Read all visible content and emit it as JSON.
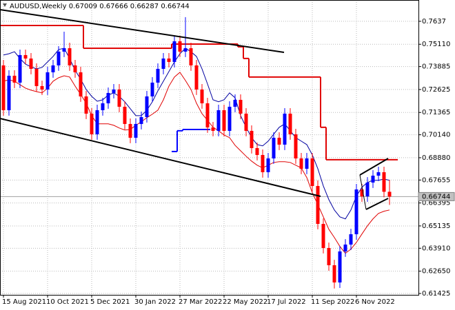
{
  "chart_data": {
    "type": "candlestick",
    "title": "AUDUSD,Weekly",
    "categories": [
      "15 Aug 2021",
      null,
      null,
      null,
      null,
      null,
      null,
      null,
      "10 Oct 2021",
      null,
      null,
      null,
      null,
      null,
      null,
      null,
      "5 Dec 2021",
      null,
      null,
      null,
      null,
      null,
      null,
      null,
      "30 Jan 2022",
      null,
      null,
      null,
      null,
      null,
      null,
      null,
      "27 Mar 2022",
      null,
      null,
      null,
      null,
      null,
      null,
      null,
      "22 May 2022",
      null,
      null,
      null,
      null,
      null,
      null,
      null,
      "17 Jul 2022",
      null,
      null,
      null,
      null,
      null,
      null,
      null,
      "11 Sep 2022",
      null,
      null,
      null,
      null,
      null,
      null,
      null,
      "6 Nov 2022",
      null,
      null,
      null,
      null,
      null,
      null
    ],
    "open": [
      0.73949,
      0.71489,
      0.73381,
      0.73003,
      0.74516,
      0.74327,
      0.73759,
      0.72813,
      0.72624,
      0.7357,
      0.73949,
      0.74705,
      0.74894,
      0.73949,
      0.7357,
      0.72246,
      0.713,
      0.70165,
      0.71489,
      0.71868,
      0.72435,
      0.72624,
      0.71678,
      0.70733,
      0.69976,
      0.70733,
      0.71111,
      0.72246,
      0.73003,
      0.73759,
      0.74327,
      0.74138,
      0.75273,
      0.74705,
      0.74894,
      0.73949,
      0.72624,
      0.71868,
      0.70543,
      0.70354,
      0.71489,
      0.70354,
      0.71678,
      0.72057,
      0.713,
      0.70354,
      0.69408,
      0.6903,
      0.68084,
      0.68841,
      0.69976,
      0.69598,
      0.713,
      0.70165,
      0.68841,
      0.68273,
      0.68841,
      0.67327,
      0.65246,
      0.63922,
      0.62976,
      0.6203,
      0.63733,
      0.64111,
      0.64678,
      0.67138,
      0.66759,
      0.67516,
      0.67895,
      0.68084,
      0.67009
    ],
    "high": [
      0.74249,
      0.73681,
      0.73681,
      0.74816,
      0.74816,
      0.74627,
      0.74059,
      0.73113,
      0.7387,
      0.74249,
      0.75005,
      0.758,
      0.75194,
      0.74249,
      0.7387,
      0.72546,
      0.716,
      0.71789,
      0.72168,
      0.72735,
      0.72924,
      0.72924,
      0.71978,
      0.71033,
      0.71033,
      0.71411,
      0.72546,
      0.73303,
      0.74059,
      0.74627,
      0.74627,
      0.75573,
      0.75573,
      0.766,
      0.75194,
      0.74249,
      0.72924,
      0.72168,
      0.70843,
      0.71789,
      0.71789,
      0.71978,
      0.72357,
      0.72357,
      0.716,
      0.70654,
      0.69708,
      0.6933,
      0.69141,
      0.70276,
      0.70276,
      0.716,
      0.716,
      0.70465,
      0.69141,
      0.69141,
      0.69141,
      0.67627,
      0.65546,
      0.64222,
      0.63276,
      0.64033,
      0.64411,
      0.64978,
      0.67438,
      0.67438,
      0.67816,
      0.68195,
      0.68384,
      0.68384,
      0.67666
    ],
    "low": [
      0.71189,
      0.71189,
      0.72703,
      0.72703,
      0.74027,
      0.73459,
      0.72513,
      0.72324,
      0.72324,
      0.7327,
      0.73649,
      0.74405,
      0.73649,
      0.7327,
      0.71946,
      0.71,
      0.69865,
      0.69865,
      0.71189,
      0.71568,
      0.72135,
      0.71378,
      0.70433,
      0.69676,
      0.69676,
      0.70433,
      0.70811,
      0.71946,
      0.72703,
      0.73459,
      0.73838,
      0.73838,
      0.74405,
      0.74405,
      0.73649,
      0.72324,
      0.71568,
      0.70243,
      0.70054,
      0.70054,
      0.70054,
      0.70054,
      0.71378,
      0.71,
      0.70054,
      0.69108,
      0.6873,
      0.67784,
      0.67784,
      0.68541,
      0.69298,
      0.69298,
      0.69865,
      0.68541,
      0.67973,
      0.67973,
      0.67027,
      0.64946,
      0.63622,
      0.62676,
      0.617,
      0.6173,
      0.63433,
      0.63811,
      0.64378,
      0.66459,
      0.66459,
      0.67216,
      0.67595,
      0.66709,
      0.66287
    ],
    "close": [
      0.71489,
      0.73381,
      0.73003,
      0.74516,
      0.74327,
      0.73759,
      0.72813,
      0.72624,
      0.7357,
      0.73949,
      0.74705,
      0.74894,
      0.73949,
      0.7357,
      0.72246,
      0.713,
      0.70165,
      0.71489,
      0.71868,
      0.72435,
      0.72624,
      0.71678,
      0.70733,
      0.69976,
      0.70733,
      0.71111,
      0.72246,
      0.73003,
      0.73759,
      0.74327,
      0.74138,
      0.75273,
      0.74705,
      0.74894,
      0.73949,
      0.72624,
      0.71868,
      0.70543,
      0.70354,
      0.71489,
      0.70354,
      0.71678,
      0.72057,
      0.713,
      0.70354,
      0.69408,
      0.6903,
      0.68084,
      0.68841,
      0.69976,
      0.69598,
      0.713,
      0.70165,
      0.68841,
      0.68273,
      0.68841,
      0.67327,
      0.65246,
      0.63922,
      0.62976,
      0.6203,
      0.63733,
      0.64111,
      0.64678,
      0.67138,
      0.66759,
      0.67516,
      0.67895,
      0.68084,
      0.67009,
      0.66744
    ],
    "up_color": "#0000ff",
    "down_color": "#ff0000",
    "overlays": [
      {
        "style": "line",
        "color": "#0000a0",
        "values": [
          0.7452,
          0.7459,
          0.747,
          0.7433,
          0.7402,
          0.7387,
          0.7376,
          0.7384,
          0.7414,
          0.7444,
          0.7482,
          0.7489,
          0.7433,
          0.7368,
          0.7319,
          0.7263,
          0.7225,
          0.7198,
          0.7206,
          0.7232,
          0.7244,
          0.7225,
          0.7195,
          0.7157,
          0.7119,
          0.7119,
          0.7149,
          0.7195,
          0.7255,
          0.7308,
          0.7361,
          0.7414,
          0.7459,
          0.7489,
          0.747,
          0.7444,
          0.7376,
          0.7293,
          0.7206,
          0.7195,
          0.7206,
          0.7244,
          0.7217,
          0.7119,
          0.7055,
          0.6998,
          0.696,
          0.6953,
          0.6979,
          0.7017,
          0.7055,
          0.7074,
          0.7036,
          0.6998,
          0.6979,
          0.696,
          0.6904,
          0.6828,
          0.6733,
          0.6658,
          0.6601,
          0.6563,
          0.6552,
          0.6601,
          0.6677,
          0.6726,
          0.6752,
          0.6764,
          0.6764,
          0.6771,
          0.6764
        ]
      },
      {
        "style": "line",
        "color": "#e00000",
        "values": [
          0.7308,
          0.7316,
          0.7308,
          0.7289,
          0.727,
          0.7259,
          0.7251,
          0.7244,
          0.727,
          0.7308,
          0.7327,
          0.7338,
          0.7331,
          0.7281,
          0.7236,
          0.7187,
          0.7119,
          0.7074,
          0.7074,
          0.7074,
          0.7066,
          0.7051,
          0.704,
          0.7043,
          0.7066,
          0.7085,
          0.7108,
          0.7127,
          0.7149,
          0.7206,
          0.7281,
          0.7331,
          0.7357,
          0.7312,
          0.7263,
          0.7187,
          0.713,
          0.7093,
          0.7055,
          0.7036,
          0.7013,
          0.6998,
          0.6956,
          0.6926,
          0.6896,
          0.6869,
          0.6847,
          0.6832,
          0.6847,
          0.6862,
          0.6866,
          0.6866,
          0.6862,
          0.6847,
          0.6832,
          0.6779,
          0.6696,
          0.6631,
          0.6563,
          0.6495,
          0.645,
          0.6401,
          0.6363,
          0.6386,
          0.6423,
          0.6469,
          0.6514,
          0.6552,
          0.6582,
          0.6594,
          0.6601
        ]
      },
      {
        "style": "step",
        "color": "#e00000",
        "values": [
          0.7614,
          0.7614,
          0.7614,
          0.7614,
          0.7614,
          0.7614,
          0.7614,
          0.7614,
          0.7614,
          0.7614,
          0.7614,
          0.7614,
          0.7614,
          0.7614,
          0.7614,
          0.7489,
          0.7489,
          0.7489,
          0.7489,
          0.7489,
          0.7489,
          0.7489,
          0.7489,
          0.7489,
          0.7489,
          0.7489,
          0.7489,
          0.7489,
          0.7489,
          0.7489,
          0.7489,
          0.7512,
          0.7512,
          0.7512,
          0.7512,
          0.7512,
          0.7512,
          0.7512,
          0.7512,
          0.7512,
          0.7512,
          0.7512,
          0.7512,
          0.7497,
          0.7433,
          0.7331,
          0.7331,
          0.7331,
          0.7331,
          0.7331,
          0.7331,
          0.7331,
          0.7331,
          0.7331,
          0.7331,
          0.7331,
          0.7331,
          0.7331,
          0.7055,
          0.6877,
          0.6877,
          0.6877,
          0.6877,
          0.6877,
          0.6877,
          0.6877,
          0.6877,
          0.6877,
          0.6877,
          0.6877,
          0.6877,
          0.6877
        ]
      },
      {
        "style": "step",
        "color": "#0000ff",
        "values": [
          null,
          null,
          null,
          null,
          null,
          null,
          null,
          null,
          null,
          null,
          null,
          null,
          null,
          null,
          null,
          null,
          null,
          null,
          null,
          null,
          null,
          null,
          null,
          null,
          null,
          null,
          null,
          null,
          null,
          null,
          null,
          0.6922,
          0.7036,
          0.7043,
          0.7043,
          0.7043,
          0.7043,
          0.7043,
          null,
          null,
          null,
          null,
          null,
          null,
          null,
          null,
          null,
          null,
          null,
          null,
          null,
          null,
          null,
          null,
          null,
          null,
          null,
          null,
          null,
          null,
          null,
          null,
          null,
          null,
          null,
          null,
          null,
          null,
          null,
          null,
          null
        ]
      }
    ],
    "ylim": [
      0.6135,
      0.7754
    ],
    "yticks": [
      0.7637,
      {
        "value": 0.7511,
        "label": "0.75110"
      },
      0.73885,
      0.72625,
      0.71365,
      {
        "value": 0.7014,
        "label": "0.70140"
      },
      {
        "value": 0.6888,
        "label": "0.68880"
      },
      0.67655,
      0.66395,
      0.65135,
      {
        "value": 0.6391,
        "label": "0.63910"
      },
      {
        "value": 0.6265,
        "label": "0.62650"
      },
      0.61425
    ],
    "grid": true
  }
}
